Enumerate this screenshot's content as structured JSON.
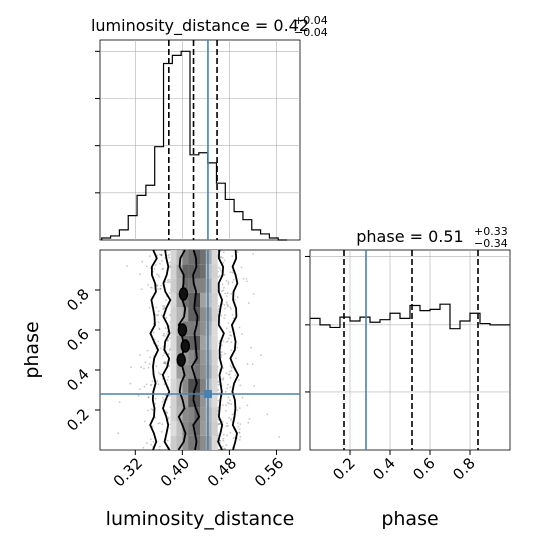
{
  "chart_data": [
    {
      "type": "histogram",
      "panel": "luminosity_distance marginal",
      "title_param": "luminosity_distance",
      "title_value": "0.42",
      "title_plus": "+0.04",
      "title_minus": "−0.04",
      "xlim": [
        0.26,
        0.6
      ],
      "bin_edges": [
        0.263,
        0.278,
        0.293,
        0.308,
        0.323,
        0.338,
        0.353,
        0.368,
        0.383,
        0.398,
        0.413,
        0.428,
        0.443,
        0.458,
        0.473,
        0.488,
        0.503,
        0.518,
        0.533,
        0.548,
        0.563,
        0.578
      ],
      "density": [
        0.01,
        0.02,
        0.05,
        0.12,
        0.22,
        0.27,
        0.46,
        0.87,
        0.91,
        0.93,
        0.42,
        0.43,
        0.38,
        0.28,
        0.2,
        0.14,
        0.1,
        0.05,
        0.03,
        0.01,
        0.0
      ],
      "quantiles": [
        0.377,
        0.419,
        0.459
      ],
      "truth": 0.4435
    },
    {
      "type": "scatter+contour",
      "panel": "luminosity_distance vs phase joint",
      "x_param": "luminosity_distance",
      "y_param": "phase",
      "xlim": [
        0.26,
        0.6
      ],
      "ylim": [
        0.0,
        1.0
      ],
      "truth_x": 0.4435,
      "truth_y": 0.28,
      "contour_columns_x": [
        0.352,
        0.373,
        0.4,
        0.422,
        0.465,
        0.488
      ],
      "xticks": [
        "0.32",
        "0.40",
        "0.48",
        "0.56"
      ],
      "yticks": [
        "0.2",
        "0.4",
        "0.6",
        "0.8"
      ],
      "xlabel": "luminosity_distance",
      "ylabel": "phase"
    },
    {
      "type": "histogram",
      "panel": "phase marginal",
      "title_param": "phase",
      "title_value": "0.51",
      "title_plus": "+0.33",
      "title_minus": "−0.34",
      "xlim": [
        0.0,
        1.0
      ],
      "bin_edges": [
        0.0,
        0.05,
        0.1,
        0.15,
        0.2,
        0.25,
        0.3,
        0.35,
        0.4,
        0.45,
        0.5,
        0.55,
        0.6,
        0.65,
        0.7,
        0.75,
        0.8,
        0.85,
        0.9,
        0.95,
        1.0
      ],
      "density": [
        1.02,
        0.97,
        0.95,
        1.03,
        1.0,
        1.03,
        0.99,
        1.01,
        1.06,
        1.02,
        1.12,
        1.08,
        1.09,
        1.13,
        0.94,
        1.0,
        1.06,
        0.98,
        0.97,
        0.97
      ],
      "quantiles": [
        0.17,
        0.51,
        0.84
      ],
      "truth": 0.28,
      "xticks": [
        "0.2",
        "0.4",
        "0.6",
        "0.8"
      ],
      "xlabel": "phase"
    }
  ],
  "colors": {
    "truth": "#4682b4",
    "hist": "#000000",
    "grid": "#b0b0b0",
    "density": "#7f7f7f"
  }
}
